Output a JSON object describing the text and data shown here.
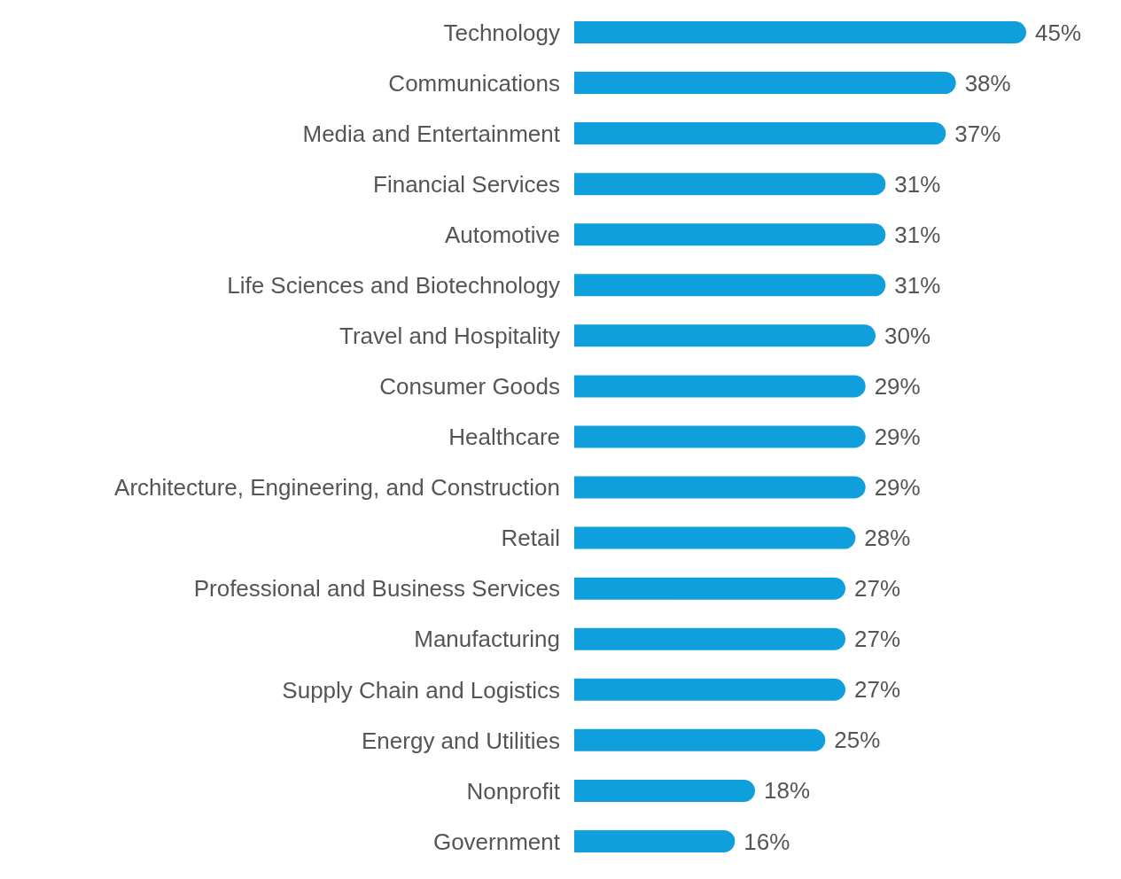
{
  "chart_data": {
    "type": "bar",
    "orientation": "horizontal",
    "categories": [
      "Technology",
      "Communications",
      "Media and Entertainment",
      "Financial Services",
      "Automotive",
      "Life Sciences and Biotechnology",
      "Travel and Hospitality",
      "Consumer Goods",
      "Healthcare",
      "Architecture, Engineering, and Construction",
      "Retail",
      "Professional and Business Services",
      "Manufacturing",
      "Supply Chain and Logistics",
      "Energy and Utilities",
      "Nonprofit",
      "Government"
    ],
    "values": [
      45,
      38,
      37,
      31,
      31,
      31,
      30,
      29,
      29,
      29,
      28,
      27,
      27,
      27,
      25,
      18,
      16
    ],
    "value_labels": [
      "45%",
      "38%",
      "37%",
      "31%",
      "31%",
      "31%",
      "30%",
      "29%",
      "29%",
      "29%",
      "28%",
      "27%",
      "27%",
      "27%",
      "25%",
      "18%",
      "16%"
    ],
    "color": "#0e9fdc"
  }
}
